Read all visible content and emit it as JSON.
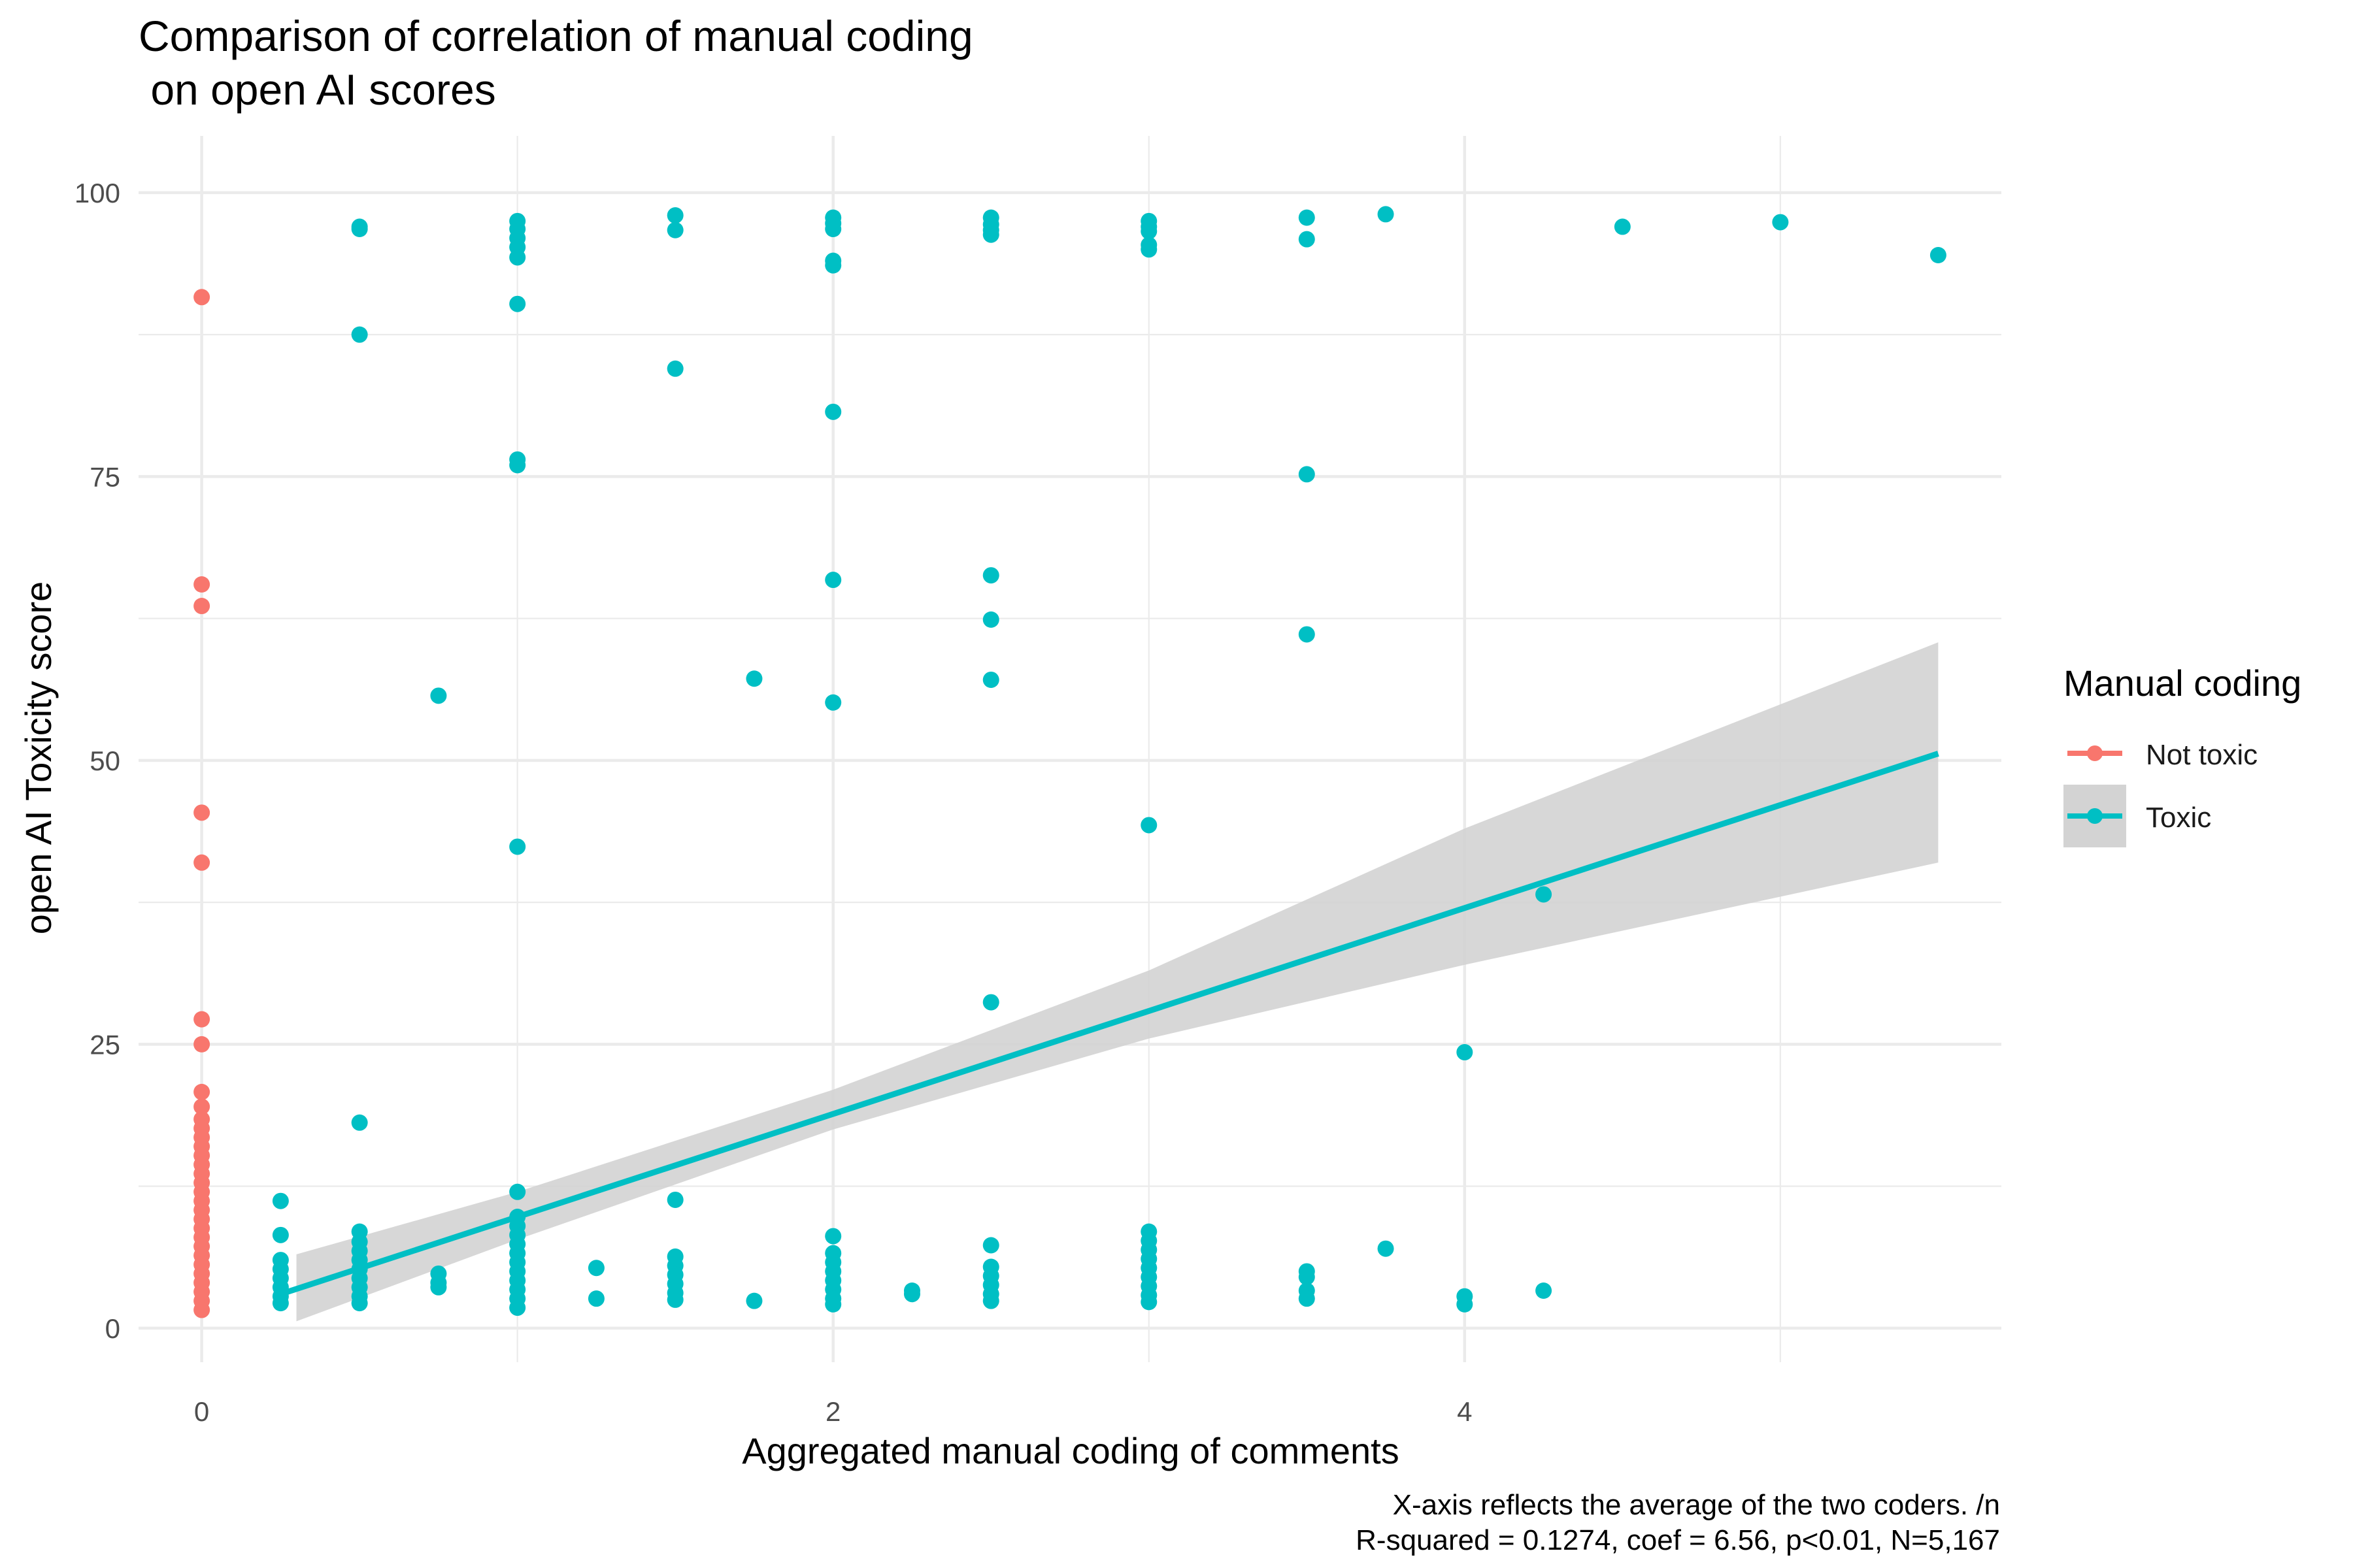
{
  "chart_data": {
    "type": "scatter",
    "title": "Comparison of correlation of manual coding",
    "subtitle": " on open AI scores",
    "xlabel": "Aggregated manual coding of comments",
    "ylabel": "open AI Toxicity score",
    "caption": [
      "X-axis reflects the average of the two coders. /n",
      "R-squared = 0.1274, coef = 6.56, p<0.01, N=5,167"
    ],
    "xlim": [
      -0.2,
      5.7
    ],
    "ylim": [
      -3,
      105
    ],
    "x_ticks": [
      0,
      2,
      4
    ],
    "y_ticks": [
      0,
      25,
      50,
      75,
      100
    ],
    "grid": true,
    "legend": {
      "title": "Manual coding",
      "position": "right"
    },
    "series": [
      {
        "name": "Not toxic",
        "color": "#F8766D",
        "points": [
          [
            0,
            90.8
          ],
          [
            0,
            65.5
          ],
          [
            0,
            63.6
          ],
          [
            0,
            45.4
          ],
          [
            0,
            41.0
          ],
          [
            0,
            27.2
          ],
          [
            0,
            25.0
          ],
          [
            0,
            20.8
          ],
          [
            0,
            19.5
          ],
          [
            0,
            18.4
          ],
          [
            0,
            17.6
          ],
          [
            0,
            16.8
          ],
          [
            0,
            16.0
          ],
          [
            0,
            15.2
          ],
          [
            0,
            14.4
          ],
          [
            0,
            13.6
          ],
          [
            0,
            12.8
          ],
          [
            0,
            12.0
          ],
          [
            0,
            11.2
          ],
          [
            0,
            10.4
          ],
          [
            0,
            9.6
          ],
          [
            0,
            8.8
          ],
          [
            0,
            8.0
          ],
          [
            0,
            7.2
          ],
          [
            0,
            6.4
          ],
          [
            0,
            5.6
          ],
          [
            0,
            4.8
          ],
          [
            0,
            4.0
          ],
          [
            0,
            3.2
          ],
          [
            0,
            2.4
          ],
          [
            0,
            1.6
          ]
        ]
      },
      {
        "name": "Toxic",
        "color": "#00BFC4",
        "points": [
          [
            0.25,
            11.2
          ],
          [
            0.25,
            8.2
          ],
          [
            0.25,
            6.0
          ],
          [
            0.25,
            5.2
          ],
          [
            0.25,
            4.4
          ],
          [
            0.25,
            3.6
          ],
          [
            0.25,
            2.8
          ],
          [
            0.25,
            2.2
          ],
          [
            0.5,
            97.0
          ],
          [
            0.5,
            96.8
          ],
          [
            0.5,
            87.5
          ],
          [
            0.5,
            18.1
          ],
          [
            0.5,
            8.5
          ],
          [
            0.5,
            7.6
          ],
          [
            0.5,
            6.8
          ],
          [
            0.5,
            6.0
          ],
          [
            0.5,
            5.2
          ],
          [
            0.5,
            4.4
          ],
          [
            0.5,
            3.6
          ],
          [
            0.5,
            2.8
          ],
          [
            0.5,
            2.2
          ],
          [
            0.75,
            55.7
          ],
          [
            0.75,
            4.8
          ],
          [
            0.75,
            4.0
          ],
          [
            0.75,
            3.6
          ],
          [
            1,
            97.5
          ],
          [
            1,
            96.8
          ],
          [
            1,
            96.0
          ],
          [
            1,
            95.2
          ],
          [
            1,
            94.3
          ],
          [
            1,
            90.2
          ],
          [
            1,
            76.5
          ],
          [
            1,
            76.0
          ],
          [
            1,
            42.4
          ],
          [
            1,
            12.0
          ],
          [
            1,
            9.8
          ],
          [
            1,
            9.0
          ],
          [
            1,
            8.2
          ],
          [
            1,
            7.4
          ],
          [
            1,
            6.6
          ],
          [
            1,
            5.8
          ],
          [
            1,
            5.0
          ],
          [
            1,
            4.2
          ],
          [
            1,
            3.4
          ],
          [
            1,
            2.6
          ],
          [
            1,
            1.8
          ],
          [
            1.25,
            5.3
          ],
          [
            1.25,
            2.6
          ],
          [
            1.5,
            98.0
          ],
          [
            1.5,
            96.7
          ],
          [
            1.5,
            84.5
          ],
          [
            1.5,
            11.3
          ],
          [
            1.5,
            6.3
          ],
          [
            1.5,
            5.5
          ],
          [
            1.5,
            4.7
          ],
          [
            1.5,
            3.9
          ],
          [
            1.5,
            3.1
          ],
          [
            1.5,
            2.5
          ],
          [
            1.75,
            57.2
          ],
          [
            1.75,
            2.4
          ],
          [
            2,
            97.8
          ],
          [
            2,
            97.3
          ],
          [
            2,
            96.8
          ],
          [
            2,
            94.0
          ],
          [
            2,
            93.6
          ],
          [
            2,
            80.7
          ],
          [
            2,
            65.9
          ],
          [
            2,
            55.1
          ],
          [
            2,
            8.1
          ],
          [
            2,
            6.6
          ],
          [
            2,
            5.8
          ],
          [
            2,
            5.0
          ],
          [
            2,
            4.2
          ],
          [
            2,
            3.4
          ],
          [
            2,
            2.6
          ],
          [
            2,
            2.1
          ],
          [
            2.25,
            3.3
          ],
          [
            2.25,
            3.0
          ],
          [
            2.5,
            97.8
          ],
          [
            2.5,
            97.2
          ],
          [
            2.5,
            96.7
          ],
          [
            2.5,
            96.3
          ],
          [
            2.5,
            66.3
          ],
          [
            2.5,
            62.4
          ],
          [
            2.5,
            57.1
          ],
          [
            2.5,
            28.7
          ],
          [
            2.5,
            7.3
          ],
          [
            2.5,
            5.4
          ],
          [
            2.5,
            4.6
          ],
          [
            2.5,
            3.8
          ],
          [
            2.5,
            3.0
          ],
          [
            2.5,
            2.4
          ],
          [
            3,
            97.5
          ],
          [
            3,
            97.0
          ],
          [
            3,
            96.6
          ],
          [
            3,
            95.4
          ],
          [
            3,
            95.0
          ],
          [
            3,
            44.3
          ],
          [
            3,
            8.5
          ],
          [
            3,
            7.7
          ],
          [
            3,
            6.9
          ],
          [
            3,
            6.1
          ],
          [
            3,
            5.3
          ],
          [
            3,
            4.5
          ],
          [
            3,
            3.7
          ],
          [
            3,
            2.9
          ],
          [
            3,
            2.3
          ],
          [
            3.5,
            97.8
          ],
          [
            3.5,
            95.9
          ],
          [
            3.5,
            75.2
          ],
          [
            3.5,
            61.1
          ],
          [
            3.5,
            5.0
          ],
          [
            3.5,
            4.5
          ],
          [
            3.5,
            3.3
          ],
          [
            3.5,
            2.6
          ],
          [
            3.75,
            98.1
          ],
          [
            3.75,
            7.0
          ],
          [
            4,
            24.3
          ],
          [
            4,
            2.8
          ],
          [
            4,
            2.1
          ],
          [
            4.25,
            38.2
          ],
          [
            4.25,
            3.3
          ],
          [
            4.5,
            97.0
          ],
          [
            5,
            97.4
          ],
          [
            5.5,
            94.5
          ]
        ]
      }
    ],
    "fit": {
      "series": "Toxic",
      "line": [
        [
          0.25,
          3.0
        ],
        [
          5.5,
          50.6
        ]
      ],
      "ci_upper": [
        [
          0.3,
          6.5
        ],
        [
          1.0,
          12.0
        ],
        [
          2.0,
          21.0
        ],
        [
          3.0,
          31.5
        ],
        [
          4.0,
          44.0
        ],
        [
          5.5,
          60.4
        ]
      ],
      "ci_lower": [
        [
          0.3,
          0.6
        ],
        [
          1.0,
          7.8
        ],
        [
          2.0,
          17.5
        ],
        [
          3.0,
          25.5
        ],
        [
          4.0,
          32.0
        ],
        [
          5.5,
          41.0
        ]
      ],
      "band_color": "#D3D3D3",
      "line_color": "#00BFC4"
    }
  }
}
